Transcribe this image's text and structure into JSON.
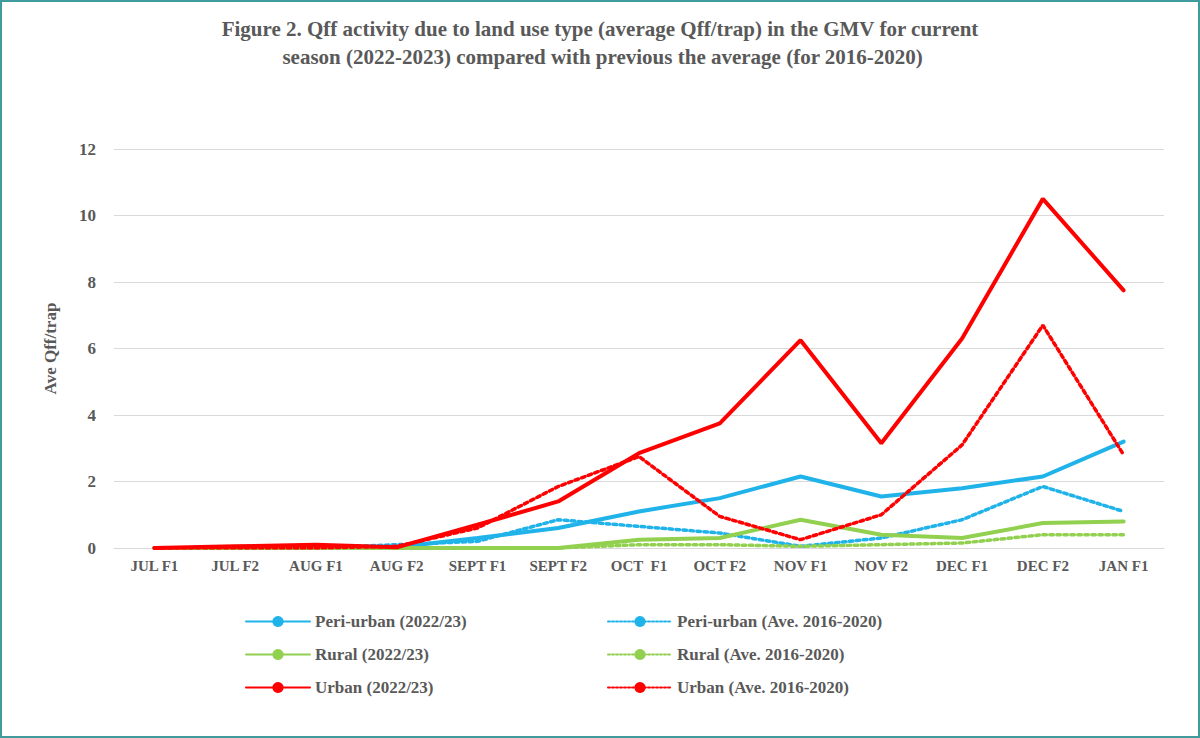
{
  "chart_data": {
    "type": "line",
    "title": "Figure 2. Qff activity due to land use type (average Qff/trap) in the GMV for current season (2022-2023) compared with previous the average (for 2016-2020)",
    "y_label": "Ave Qff/trap",
    "categories": [
      "JUL F1",
      "JUL F2",
      "AUG F1",
      "AUG F2",
      "SEPT F1",
      "SEPT F2",
      "OCT  F1",
      "OCT F2",
      "NOV F1",
      "NOV F2",
      "DEC F1",
      "DEC F2",
      "JAN F1"
    ],
    "series": [
      {
        "name": "Peri-urban (2022/23)",
        "color": "#1fb3ea",
        "line_style": "solid",
        "values": [
          0,
          0,
          0,
          0.02,
          0.3,
          0.6,
          1.1,
          1.5,
          2.15,
          1.55,
          1.8,
          2.15,
          3.2
        ]
      },
      {
        "name": "Peri-urban (Ave. 2016-2020)",
        "color": "#1fb3ea",
        "line_style": "dotted",
        "values": [
          0,
          0,
          0,
          0.1,
          0.2,
          0.85,
          0.65,
          0.45,
          0.05,
          0.3,
          0.85,
          1.85,
          1.1
        ]
      },
      {
        "name": "Rural (2022/23)",
        "color": "#92d050",
        "line_style": "solid",
        "values": [
          0,
          0,
          0,
          0,
          0,
          0,
          0.25,
          0.3,
          0.85,
          0.4,
          0.3,
          0.75,
          0.8
        ]
      },
      {
        "name": "Rural (Ave. 2016-2020)",
        "color": "#92d050",
        "line_style": "dotted",
        "values": [
          0,
          0,
          0,
          0,
          0,
          0,
          0.1,
          0.1,
          0.05,
          0.1,
          0.15,
          0.4,
          0.4
        ]
      },
      {
        "name": "Urban (2022/23)",
        "color": "#ff0000",
        "line_style": "solid",
        "values": [
          0,
          0.05,
          0.1,
          0.02,
          0.7,
          1.4,
          2.85,
          3.75,
          6.25,
          3.15,
          6.3,
          10.5,
          7.75
        ]
      },
      {
        "name": "Urban (Ave. 2016-2020)",
        "color": "#ff0000",
        "line_style": "dotted",
        "values": [
          0,
          0,
          0,
          0.05,
          0.6,
          1.85,
          2.75,
          0.95,
          0.25,
          1.0,
          3.1,
          6.7,
          2.8
        ]
      }
    ],
    "ylim": [
      0,
      12
    ],
    "yticks": [
      0,
      2,
      4,
      6,
      8,
      10,
      12
    ],
    "grid": true,
    "legend": "bottom"
  }
}
